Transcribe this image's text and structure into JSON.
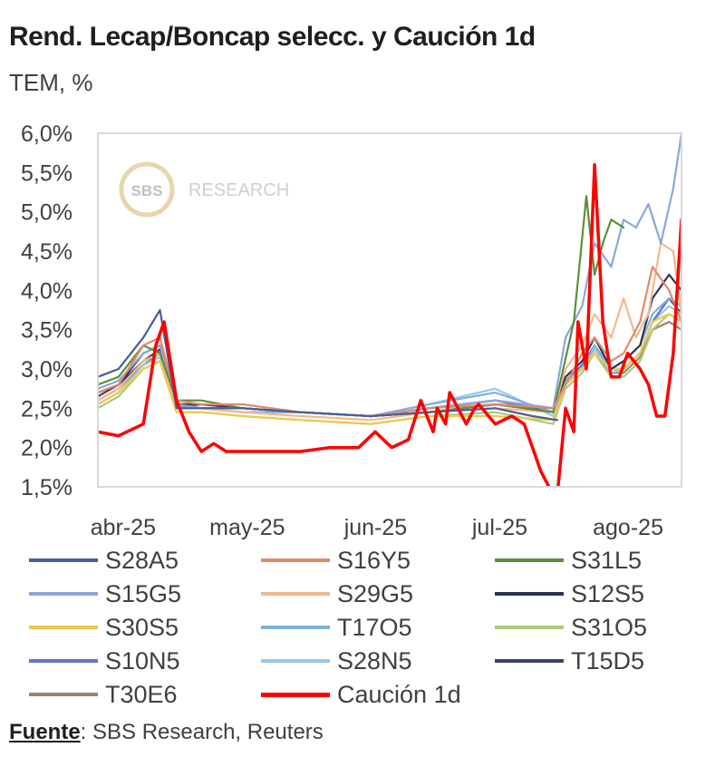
{
  "header": {
    "title": "Rend. Lecap/Boncap selecc. y Caución 1d",
    "subtitle": "TEM, %"
  },
  "watermark": {
    "logo_text": "SBS",
    "text": "RESEARCH"
  },
  "footer": {
    "source_key": "Fuente",
    "source_text": ": SBS Research, Reuters"
  },
  "chart_data": {
    "type": "line",
    "title": "Rend. Lecap/Boncap selecc. y Caución 1d",
    "subtitle": "TEM, %",
    "x_axis": {
      "type": "date",
      "range": [
        "2025-03-27",
        "2025-08-15"
      ],
      "tick_labels": [
        "abr-25",
        "may-25",
        "jun-25",
        "jul-25",
        "ago-25"
      ],
      "tick_dates": [
        "2025-04-01",
        "2025-05-01",
        "2025-06-01",
        "2025-07-01",
        "2025-08-01"
      ]
    },
    "y_axis": {
      "range": [
        1.5,
        6.0
      ],
      "tick_values": [
        1.5,
        2.0,
        2.5,
        3.0,
        3.5,
        4.0,
        4.5,
        5.0,
        5.5,
        6.0
      ],
      "tick_labels": [
        "1,5%",
        "2,0%",
        "2,5%",
        "3,0%",
        "3,5%",
        "4,0%",
        "4,5%",
        "5,0%",
        "5,5%",
        "6,0%"
      ]
    },
    "grid": false,
    "legend_position": "bottom",
    "series": [
      {
        "name": "S28A5",
        "color": "#4a5b9e",
        "x": [
          "2025-03-27",
          "2025-04-01",
          "2025-04-07",
          "2025-04-11",
          "2025-04-15",
          "2025-04-21",
          "2025-05-01",
          "2025-05-15",
          "2025-06-01",
          "2025-06-15",
          "2025-07-01",
          "2025-07-10",
          "2025-07-16"
        ],
        "y": [
          2.9,
          3.0,
          3.4,
          3.75,
          2.5,
          2.5,
          2.5,
          2.45,
          2.4,
          2.45,
          2.5,
          2.4,
          2.35
        ]
      },
      {
        "name": "S16Y5",
        "color": "#e2896a",
        "x": [
          "2025-03-27",
          "2025-04-01",
          "2025-04-07",
          "2025-04-11",
          "2025-04-15",
          "2025-04-21",
          "2025-05-01",
          "2025-05-15",
          "2025-06-01",
          "2025-06-15",
          "2025-07-01",
          "2025-07-15",
          "2025-07-18",
          "2025-07-22",
          "2025-07-25",
          "2025-07-29",
          "2025-08-01",
          "2025-08-05",
          "2025-08-08",
          "2025-08-12",
          "2025-08-15"
        ],
        "y": [
          2.7,
          2.8,
          3.3,
          3.4,
          2.6,
          2.55,
          2.55,
          2.45,
          2.4,
          2.5,
          2.55,
          2.5,
          2.8,
          3.2,
          3.4,
          3.1,
          3.2,
          3.6,
          4.3,
          4.0,
          3.6
        ]
      },
      {
        "name": "S31L5",
        "color": "#5b8f3a",
        "x": [
          "2025-03-27",
          "2025-04-01",
          "2025-04-07",
          "2025-04-11",
          "2025-04-15",
          "2025-04-21",
          "2025-05-01",
          "2025-05-15",
          "2025-06-01",
          "2025-06-15",
          "2025-07-01",
          "2025-07-15",
          "2025-07-17",
          "2025-07-20",
          "2025-07-23",
          "2025-07-25",
          "2025-07-27",
          "2025-07-29",
          "2025-08-01"
        ],
        "y": [
          2.8,
          2.9,
          3.3,
          3.2,
          2.6,
          2.6,
          2.5,
          2.45,
          2.4,
          2.45,
          2.55,
          2.45,
          2.9,
          3.6,
          5.2,
          4.2,
          4.6,
          4.9,
          4.8
        ]
      },
      {
        "name": "S15G5",
        "color": "#8aa7dc",
        "x": [
          "2025-03-27",
          "2025-04-01",
          "2025-04-07",
          "2025-04-11",
          "2025-04-15",
          "2025-04-21",
          "2025-05-01",
          "2025-05-15",
          "2025-06-01",
          "2025-06-15",
          "2025-07-01",
          "2025-07-15",
          "2025-07-18",
          "2025-07-22",
          "2025-07-25",
          "2025-07-29",
          "2025-08-01",
          "2025-08-04",
          "2025-08-07",
          "2025-08-10",
          "2025-08-13",
          "2025-08-15"
        ],
        "y": [
          2.75,
          2.85,
          3.2,
          3.3,
          2.55,
          2.5,
          2.5,
          2.45,
          2.4,
          2.5,
          2.6,
          2.5,
          3.4,
          3.8,
          4.6,
          4.3,
          4.9,
          4.8,
          5.1,
          4.6,
          5.3,
          6.0
        ]
      },
      {
        "name": "S29G5",
        "color": "#f2b98e",
        "x": [
          "2025-03-27",
          "2025-04-01",
          "2025-04-07",
          "2025-04-11",
          "2025-04-15",
          "2025-04-21",
          "2025-05-01",
          "2025-05-15",
          "2025-06-01",
          "2025-06-15",
          "2025-07-01",
          "2025-07-15",
          "2025-07-18",
          "2025-07-22",
          "2025-07-25",
          "2025-07-29",
          "2025-08-01",
          "2025-08-04",
          "2025-08-07",
          "2025-08-10",
          "2025-08-13",
          "2025-08-15"
        ],
        "y": [
          2.6,
          2.75,
          3.1,
          3.2,
          2.5,
          2.5,
          2.45,
          2.4,
          2.35,
          2.45,
          2.5,
          2.45,
          3.0,
          3.3,
          3.7,
          3.4,
          3.9,
          3.4,
          3.7,
          4.6,
          4.5,
          3.7
        ]
      },
      {
        "name": "S12S5",
        "color": "#2b3455",
        "x": [
          "2025-03-27",
          "2025-04-01",
          "2025-04-07",
          "2025-04-11",
          "2025-04-15",
          "2025-04-21",
          "2025-05-01",
          "2025-05-15",
          "2025-06-01",
          "2025-06-15",
          "2025-07-01",
          "2025-07-15",
          "2025-07-18",
          "2025-07-22",
          "2025-07-25",
          "2025-07-29",
          "2025-08-01",
          "2025-08-05",
          "2025-08-08",
          "2025-08-12",
          "2025-08-15"
        ],
        "y": [
          2.7,
          2.8,
          3.2,
          3.3,
          2.55,
          2.5,
          2.5,
          2.45,
          2.4,
          2.45,
          2.55,
          2.5,
          2.9,
          3.1,
          3.4,
          3.0,
          3.1,
          3.3,
          3.9,
          4.2,
          4.0
        ]
      },
      {
        "name": "S30S5",
        "color": "#f2c84b",
        "x": [
          "2025-03-27",
          "2025-04-01",
          "2025-04-07",
          "2025-04-11",
          "2025-04-15",
          "2025-04-21",
          "2025-05-01",
          "2025-05-15",
          "2025-06-01",
          "2025-06-15",
          "2025-07-01",
          "2025-07-15",
          "2025-07-18",
          "2025-07-22",
          "2025-07-25",
          "2025-07-29",
          "2025-08-01",
          "2025-08-05",
          "2025-08-08",
          "2025-08-12",
          "2025-08-15"
        ],
        "y": [
          2.55,
          2.7,
          3.0,
          3.1,
          2.45,
          2.45,
          2.4,
          2.35,
          2.3,
          2.4,
          2.4,
          2.35,
          2.8,
          3.0,
          3.2,
          3.0,
          3.0,
          3.2,
          3.6,
          3.7,
          3.6
        ]
      },
      {
        "name": "T17O5",
        "color": "#7fb1de",
        "x": [
          "2025-03-27",
          "2025-04-01",
          "2025-04-07",
          "2025-04-11",
          "2025-04-15",
          "2025-04-21",
          "2025-05-01",
          "2025-05-15",
          "2025-06-01",
          "2025-06-15",
          "2025-07-01",
          "2025-07-15",
          "2025-07-18",
          "2025-07-22",
          "2025-07-25",
          "2025-07-29",
          "2025-08-01",
          "2025-08-05",
          "2025-08-08",
          "2025-08-12",
          "2025-08-15"
        ],
        "y": [
          2.6,
          2.75,
          3.1,
          3.2,
          2.5,
          2.5,
          2.45,
          2.45,
          2.4,
          2.55,
          2.7,
          2.45,
          2.85,
          3.0,
          3.3,
          3.0,
          3.1,
          3.3,
          3.7,
          3.9,
          3.8
        ]
      },
      {
        "name": "S31O5",
        "color": "#a6cc7a",
        "x": [
          "2025-03-27",
          "2025-04-01",
          "2025-04-07",
          "2025-04-11",
          "2025-04-15",
          "2025-04-21",
          "2025-05-01",
          "2025-05-15",
          "2025-06-01",
          "2025-06-15",
          "2025-07-01",
          "2025-07-15",
          "2025-07-18",
          "2025-07-22",
          "2025-07-25",
          "2025-07-29",
          "2025-08-01",
          "2025-08-05",
          "2025-08-08",
          "2025-08-12",
          "2025-08-15"
        ],
        "y": [
          2.5,
          2.65,
          3.0,
          3.1,
          2.45,
          2.45,
          2.4,
          2.35,
          2.3,
          2.4,
          2.45,
          2.3,
          2.75,
          2.95,
          3.2,
          2.9,
          2.9,
          3.1,
          3.5,
          3.7,
          3.6
        ]
      },
      {
        "name": "S10N5",
        "color": "#6673c9",
        "x": [
          "2025-03-27",
          "2025-04-01",
          "2025-04-07",
          "2025-04-11",
          "2025-04-15",
          "2025-04-21",
          "2025-05-01",
          "2025-05-15",
          "2025-06-01",
          "2025-06-15",
          "2025-07-01",
          "2025-07-15",
          "2025-07-18",
          "2025-07-22",
          "2025-07-25",
          "2025-07-29",
          "2025-08-01",
          "2025-08-05",
          "2025-08-08",
          "2025-08-12",
          "2025-08-15"
        ],
        "y": [
          2.6,
          2.75,
          3.1,
          3.2,
          2.5,
          2.5,
          2.5,
          2.45,
          2.4,
          2.5,
          2.6,
          2.45,
          2.85,
          3.05,
          3.3,
          3.0,
          3.0,
          3.2,
          3.6,
          3.9,
          3.8
        ]
      },
      {
        "name": "S28N5",
        "color": "#9ac8e8",
        "x": [
          "2025-03-27",
          "2025-04-01",
          "2025-04-07",
          "2025-04-11",
          "2025-04-15",
          "2025-04-21",
          "2025-05-01",
          "2025-05-15",
          "2025-06-01",
          "2025-06-15",
          "2025-07-01",
          "2025-07-15",
          "2025-07-18",
          "2025-07-22",
          "2025-07-25",
          "2025-07-29",
          "2025-08-01",
          "2025-08-05",
          "2025-08-08",
          "2025-08-12",
          "2025-08-15"
        ],
        "y": [
          2.55,
          2.7,
          3.05,
          3.15,
          2.5,
          2.5,
          2.45,
          2.45,
          2.4,
          2.55,
          2.75,
          2.4,
          2.8,
          3.0,
          3.25,
          2.95,
          3.0,
          3.2,
          3.6,
          3.8,
          3.7
        ]
      },
      {
        "name": "T15D5",
        "color": "#3c4466",
        "x": [
          "2025-03-27",
          "2025-04-01",
          "2025-04-07",
          "2025-04-11",
          "2025-04-15",
          "2025-04-21",
          "2025-05-01",
          "2025-05-15",
          "2025-06-01",
          "2025-06-15",
          "2025-07-01",
          "2025-07-15",
          "2025-07-18",
          "2025-07-22",
          "2025-07-25",
          "2025-07-29",
          "2025-08-01",
          "2025-08-05",
          "2025-08-08",
          "2025-08-12",
          "2025-08-15"
        ],
        "y": [
          2.65,
          2.8,
          3.1,
          3.25,
          2.55,
          2.55,
          2.5,
          2.45,
          2.4,
          2.5,
          2.6,
          2.5,
          2.85,
          3.05,
          3.3,
          3.0,
          3.0,
          3.2,
          3.6,
          3.9,
          3.7
        ]
      },
      {
        "name": "T30E6",
        "color": "#a08070",
        "x": [
          "2025-03-27",
          "2025-04-01",
          "2025-04-07",
          "2025-04-11",
          "2025-04-15",
          "2025-04-21",
          "2025-05-01",
          "2025-05-15",
          "2025-06-01",
          "2025-06-15",
          "2025-07-01",
          "2025-07-15",
          "2025-07-18",
          "2025-07-22",
          "2025-07-25",
          "2025-07-29",
          "2025-08-01",
          "2025-08-05",
          "2025-08-08",
          "2025-08-12",
          "2025-08-15"
        ],
        "y": [
          2.6,
          2.75,
          3.05,
          3.2,
          2.5,
          2.55,
          2.5,
          2.45,
          2.4,
          2.5,
          2.6,
          2.5,
          2.8,
          3.0,
          3.2,
          2.95,
          2.95,
          3.15,
          3.5,
          3.6,
          3.5
        ]
      },
      {
        "name": "Caución 1d",
        "color": "#ff0000",
        "x": [
          "2025-03-27",
          "2025-04-01",
          "2025-04-07",
          "2025-04-10",
          "2025-04-12",
          "2025-04-15",
          "2025-04-18",
          "2025-04-21",
          "2025-04-24",
          "2025-04-27",
          "2025-05-01",
          "2025-05-08",
          "2025-05-15",
          "2025-05-22",
          "2025-05-29",
          "2025-06-02",
          "2025-06-06",
          "2025-06-10",
          "2025-06-13",
          "2025-06-16",
          "2025-06-17",
          "2025-06-19",
          "2025-06-20",
          "2025-06-24",
          "2025-06-26",
          "2025-06-27",
          "2025-07-01",
          "2025-07-05",
          "2025-07-08",
          "2025-07-10",
          "2025-07-12",
          "2025-07-14",
          "2025-07-16",
          "2025-07-18",
          "2025-07-20",
          "2025-07-21",
          "2025-07-23",
          "2025-07-25",
          "2025-07-27",
          "2025-07-29",
          "2025-07-31",
          "2025-08-02",
          "2025-08-05",
          "2025-08-07",
          "2025-08-09",
          "2025-08-11",
          "2025-08-13",
          "2025-08-15"
        ],
        "y": [
          2.2,
          2.15,
          2.3,
          3.3,
          3.6,
          2.6,
          2.2,
          1.95,
          2.05,
          1.95,
          1.95,
          1.95,
          1.95,
          2.0,
          2.0,
          2.2,
          2.0,
          2.1,
          2.6,
          2.2,
          2.5,
          2.3,
          2.7,
          2.3,
          2.5,
          2.55,
          2.3,
          2.4,
          2.3,
          2.0,
          1.7,
          1.5,
          1.4,
          2.5,
          2.2,
          3.6,
          3.0,
          5.6,
          3.6,
          2.9,
          2.9,
          3.2,
          3.0,
          2.8,
          2.4,
          2.4,
          3.2,
          4.9
        ]
      }
    ]
  }
}
